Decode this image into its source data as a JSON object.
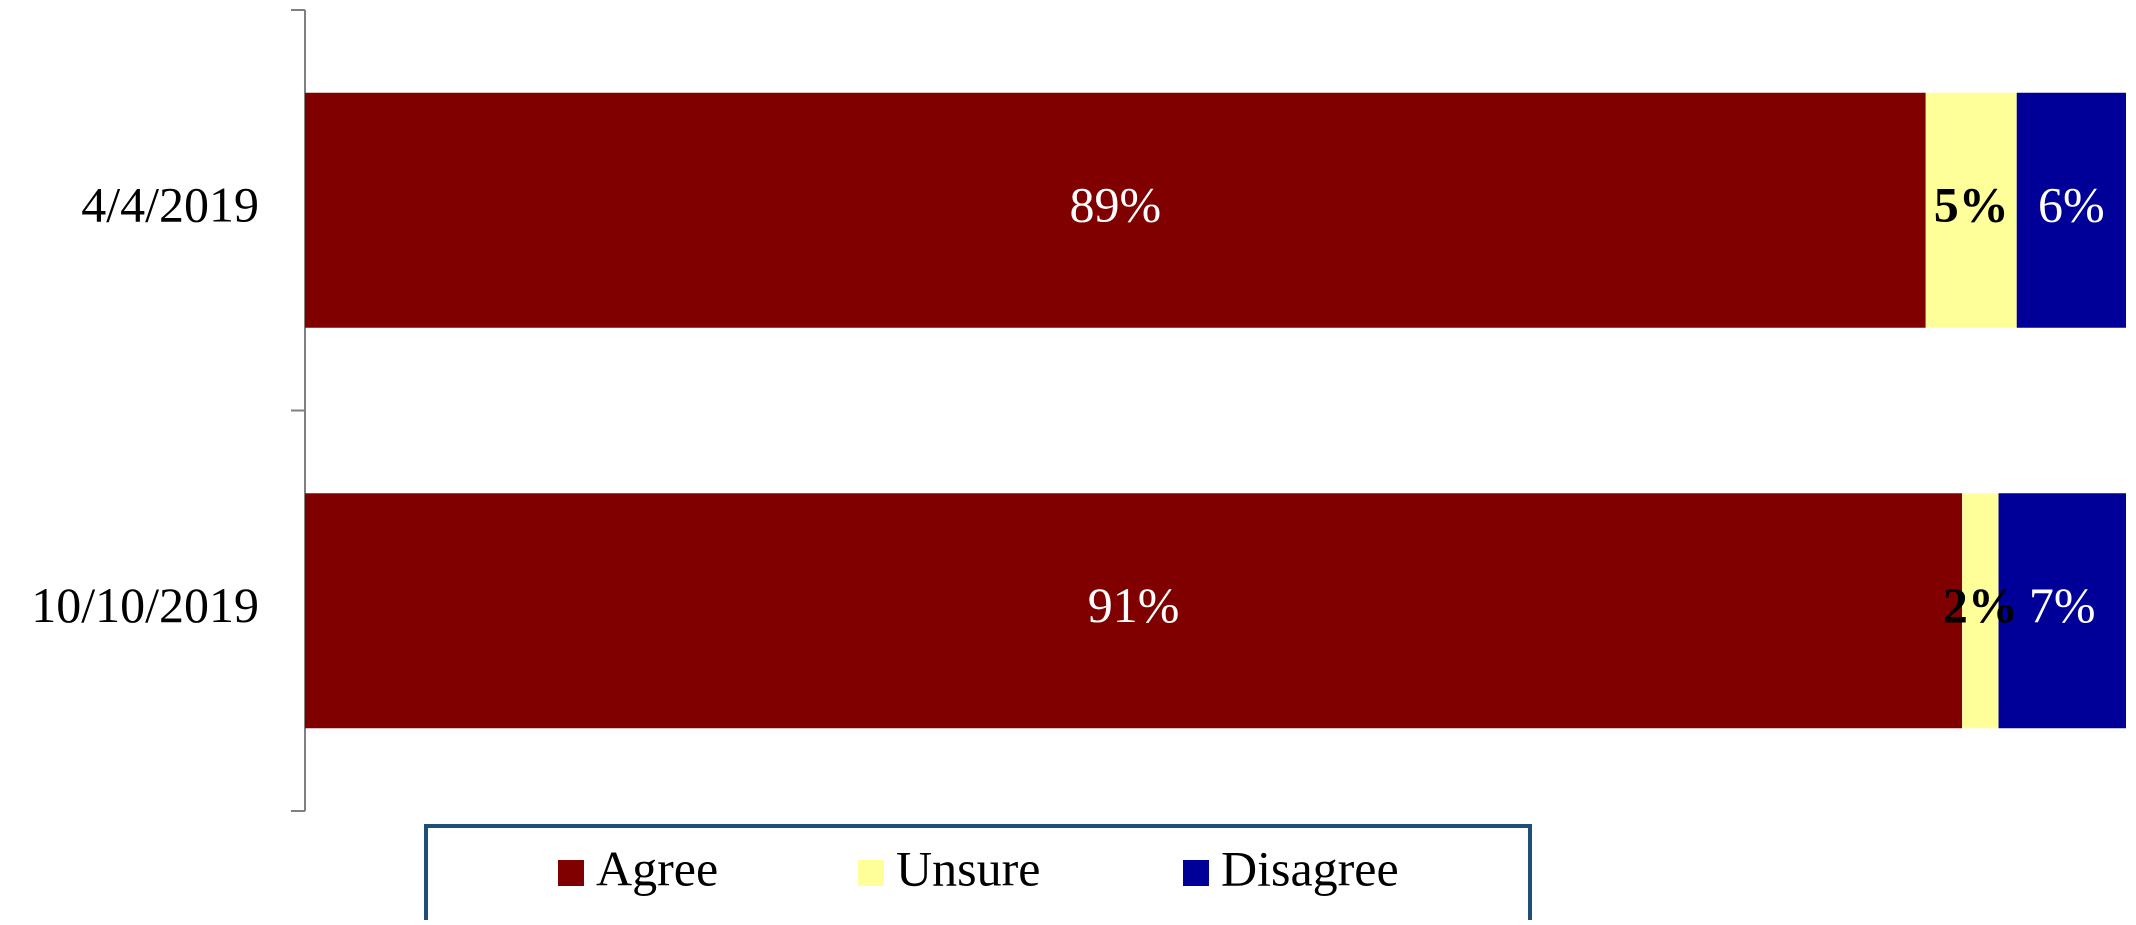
{
  "chart_data": {
    "type": "bar",
    "orientation": "horizontal",
    "stacked": true,
    "categories": [
      "4/4/2019",
      "10/10/2019"
    ],
    "series": [
      {
        "name": "Agree",
        "values": [
          89,
          91
        ],
        "labels": [
          "89%",
          "91%"
        ],
        "color": "#800000",
        "label_color": "#ffffff",
        "label_bold": false
      },
      {
        "name": "Unsure",
        "values": [
          5,
          2
        ],
        "labels": [
          "5%",
          "2%"
        ],
        "color": "#ffff99",
        "label_color": "#000000",
        "label_bold": true
      },
      {
        "name": "Disagree",
        "values": [
          6,
          7
        ],
        "labels": [
          "6%",
          "7%"
        ],
        "color": "#000099",
        "label_color": "#ffffff",
        "label_bold": false
      }
    ],
    "xlim": [
      0,
      100
    ],
    "grid": false,
    "legend_position": "bottom",
    "legend_border_color": "#1f4e79",
    "axis_color": "#808080"
  }
}
